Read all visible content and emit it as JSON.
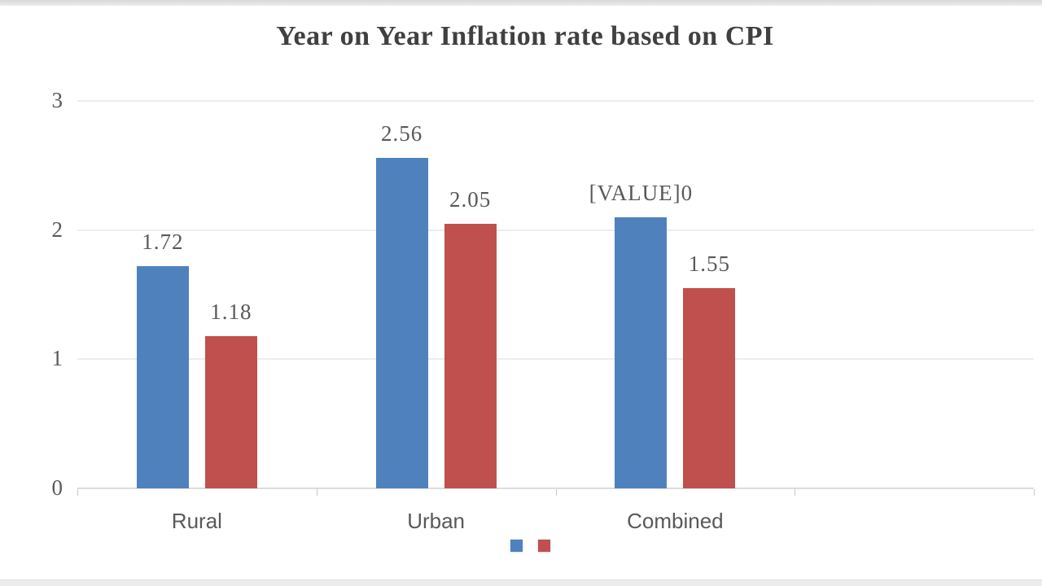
{
  "page": {
    "top_band_color": "#ececec",
    "bottom_band_color": "#ececec",
    "background": "#ffffff"
  },
  "chart_data": {
    "type": "bar",
    "title": "Year on Year Inflation rate based on CPI",
    "title_color": "#404040",
    "categories": [
      "Rural",
      "Urban",
      "Combined"
    ],
    "series": [
      {
        "name": "series-blue",
        "color": "#4F81BD",
        "values": [
          1.72,
          2.56,
          2.1
        ],
        "data_labels": [
          "1.72",
          "2.56",
          "[VALUE]0"
        ]
      },
      {
        "name": "series-red",
        "color": "#C0504D",
        "values": [
          1.18,
          2.05,
          1.55
        ],
        "data_labels": [
          "1.18",
          "2.05",
          "1.55"
        ]
      }
    ],
    "ylim": [
      0,
      3
    ],
    "yticks": [
      0,
      1,
      2,
      3
    ],
    "ytick_labels": [
      "0",
      "1",
      "2",
      "3"
    ],
    "xlabel": "",
    "ylabel": "",
    "grid": true,
    "gridline_color": "#ededed",
    "axis_line_color": "#dcdcdc",
    "text_color": "#595959",
    "x_axis_slots": 4,
    "legend": {
      "position": "bottom-center",
      "labels_visible": false,
      "entries": [
        {
          "name": "legend-swatch-blue",
          "color": "#4F81BD",
          "label": ""
        },
        {
          "name": "legend-swatch-red",
          "color": "#C0504D",
          "label": ""
        }
      ]
    }
  }
}
